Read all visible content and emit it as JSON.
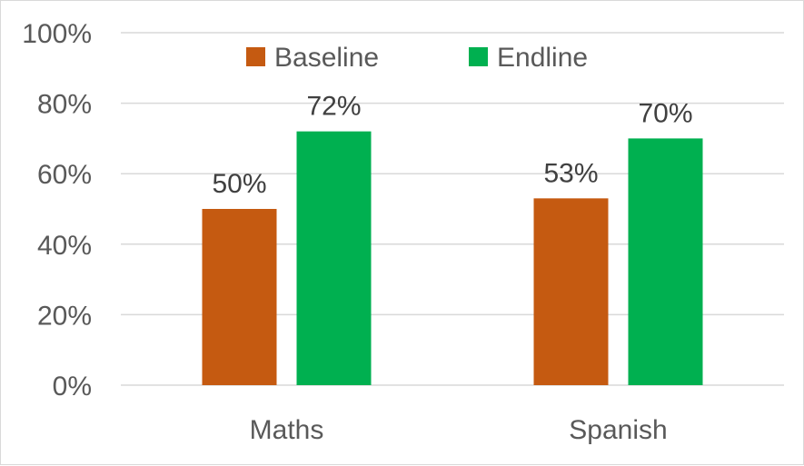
{
  "chart_data": {
    "type": "bar",
    "categories": [
      "Maths",
      "Spanish"
    ],
    "series": [
      {
        "name": "Baseline",
        "color": "#C55A11",
        "values": [
          50,
          53
        ],
        "labels": [
          "50%",
          "53%"
        ]
      },
      {
        "name": "Endline",
        "color": "#00B050",
        "values": [
          72,
          70
        ],
        "labels": [
          "72%",
          "70%"
        ]
      }
    ],
    "ylim": [
      0,
      100
    ],
    "yticks": [
      0,
      20,
      40,
      60,
      80,
      100
    ],
    "ytick_labels": [
      "0%",
      "20%",
      "40%",
      "60%",
      "80%",
      "100%"
    ],
    "grid": true,
    "legend_position": "top",
    "gridline_color": "#d9d9d9"
  }
}
